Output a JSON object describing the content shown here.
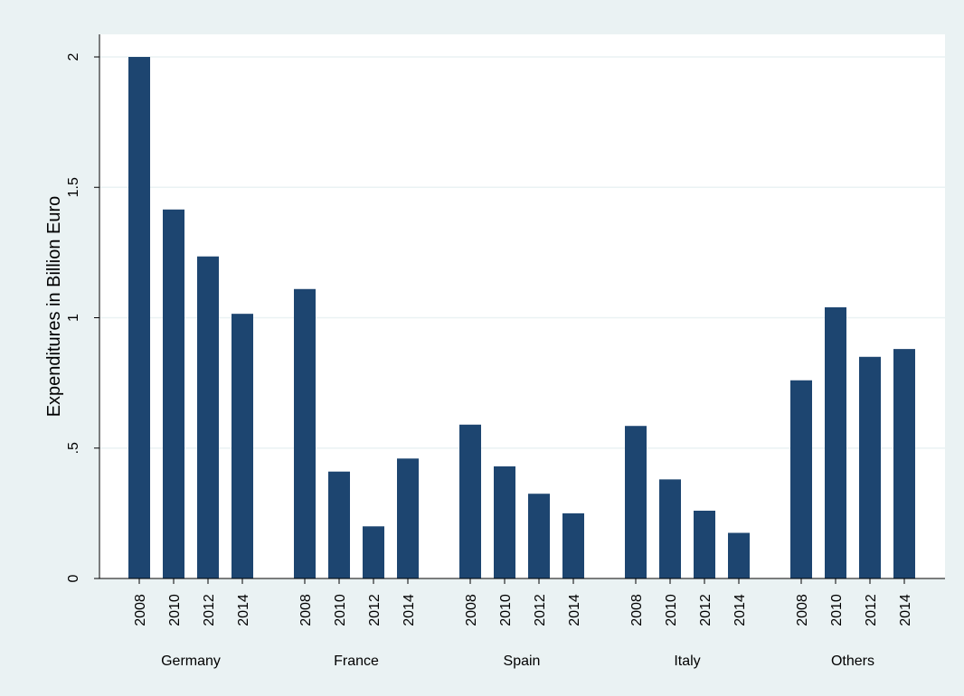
{
  "chart_data": {
    "type": "bar",
    "ylabel": "Expenditures in Billion Euro",
    "ylim": [
      0,
      2.05
    ],
    "yticks": [
      {
        "value": 0,
        "label": "0"
      },
      {
        "value": 0.5,
        "label": ".5"
      },
      {
        "value": 1,
        "label": "1"
      },
      {
        "value": 1.5,
        "label": "1.5"
      },
      {
        "value": 2,
        "label": "2"
      }
    ],
    "grid": true,
    "bar_color": "#1d4570",
    "groups": [
      {
        "name": "Germany",
        "bars": [
          {
            "year": "2008",
            "value": 2.0
          },
          {
            "year": "2010",
            "value": 1.415
          },
          {
            "year": "2012",
            "value": 1.235
          },
          {
            "year": "2014",
            "value": 1.015
          }
        ]
      },
      {
        "name": "France",
        "bars": [
          {
            "year": "2008",
            "value": 1.11
          },
          {
            "year": "2010",
            "value": 0.41
          },
          {
            "year": "2012",
            "value": 0.2
          },
          {
            "year": "2014",
            "value": 0.46
          }
        ]
      },
      {
        "name": "Spain",
        "bars": [
          {
            "year": "2008",
            "value": 0.59
          },
          {
            "year": "2010",
            "value": 0.43
          },
          {
            "year": "2012",
            "value": 0.325
          },
          {
            "year": "2014",
            "value": 0.25
          }
        ]
      },
      {
        "name": "Italy",
        "bars": [
          {
            "year": "2008",
            "value": 0.585
          },
          {
            "year": "2010",
            "value": 0.38
          },
          {
            "year": "2012",
            "value": 0.26
          },
          {
            "year": "2014",
            "value": 0.175
          }
        ]
      },
      {
        "name": "Others",
        "bars": [
          {
            "year": "2008",
            "value": 0.76
          },
          {
            "year": "2010",
            "value": 1.04
          },
          {
            "year": "2012",
            "value": 0.85
          },
          {
            "year": "2014",
            "value": 0.88
          }
        ]
      }
    ]
  }
}
